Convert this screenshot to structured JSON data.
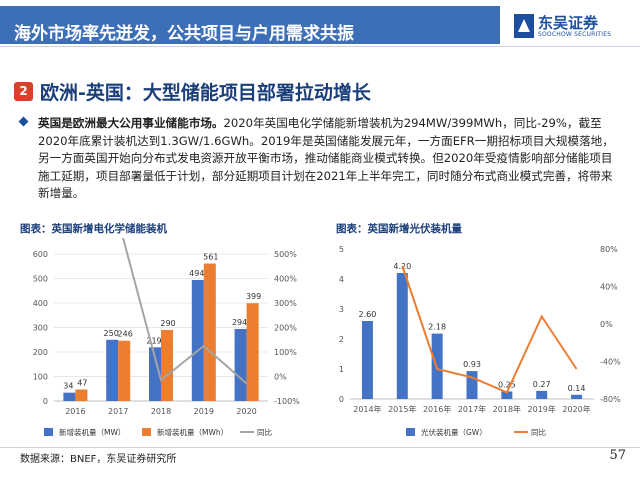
{
  "header": {
    "title": "海外市场率先迸发，公共项目与户用需求共振",
    "logo_cn": "东吴证券",
    "logo_en": "SOOCHOW SECURITIES"
  },
  "section": {
    "number": "2",
    "title": "欧洲-英国：大型储能项目部署拉动增长"
  },
  "paragraph": {
    "lead": "英国是欧洲最大公用事业储能市场。",
    "body": "2020年英国电化学储能新增装机为294MW/399MWh，同比-29%，截至2020年底累计装机达到1.3GW/1.6GWh。2019年是英国储能发展元年，一方面EFR一期招标项目大规模落地，另一方面英国开始向分布式发电资源开放平衡市场，推动储能商业模式转换。但2020年受疫情影响部分储能项目施工延期，项目部署量低于计划，部分延期项目计划在2021年上半年完工，同时随分布式商业模式完善，将带来新增量。"
  },
  "footer": {
    "source": "数据来源：BNEF，东吴证券研究所",
    "page": "57"
  },
  "colors": {
    "header_bg": "#3d6fb7",
    "blue_bar": "#4472c4",
    "orange_bar": "#ed7d31",
    "gray_line": "#a5a5a5",
    "section_num": "#d9402b"
  },
  "chart_data": [
    {
      "type": "bar",
      "title": "图表：英国新增电化学储能装机",
      "categories": [
        "2016",
        "2017",
        "2018",
        "2019",
        "2020"
      ],
      "series": [
        {
          "name": "新增装机量（MW）",
          "axis": "left",
          "values": [
            34,
            250,
            219,
            494,
            294
          ],
          "color": "#4472c4"
        },
        {
          "name": "新增装机量（MWh）",
          "axis": "left",
          "values": [
            47,
            246,
            290,
            561,
            399
          ],
          "color": "#ed7d31"
        },
        {
          "name": "同比",
          "axis": "right",
          "type": "line",
          "values": [
            null,
            640,
            -15,
            125,
            -29
          ],
          "color": "#a5a5a5"
        }
      ],
      "ylim": [
        0,
        600
      ],
      "yticks": [
        0,
        100,
        200,
        300,
        400,
        500,
        600
      ],
      "y2lim": [
        -100,
        500
      ],
      "y2ticks": [
        "-100%",
        "0%",
        "100%",
        "200%",
        "300%",
        "400%",
        "500%"
      ],
      "grid": true,
      "legend": "bottom"
    },
    {
      "type": "bar",
      "title": "图表：英国新增光伏装机量",
      "categories": [
        "2014年",
        "2015年",
        "2016年",
        "2017年",
        "2018年",
        "2019年",
        "2020年"
      ],
      "series": [
        {
          "name": "光伏装机量（GW）",
          "axis": "left",
          "values": [
            2.6,
            4.2,
            2.18,
            0.93,
            0.25,
            0.27,
            0.14
          ],
          "color": "#4472c4"
        },
        {
          "name": "同比",
          "axis": "right",
          "type": "line",
          "values": [
            null,
            62,
            -48,
            -57,
            -73,
            8,
            -48
          ],
          "color": "#ed7d31"
        }
      ],
      "ylim": [
        0,
        5
      ],
      "yticks": [
        0,
        1,
        2,
        3,
        4,
        5
      ],
      "y2lim": [
        -80,
        80
      ],
      "y2ticks": [
        "-80%",
        "-40%",
        "0%",
        "40%",
        "80%"
      ],
      "grid": false,
      "legend": "bottom"
    }
  ]
}
